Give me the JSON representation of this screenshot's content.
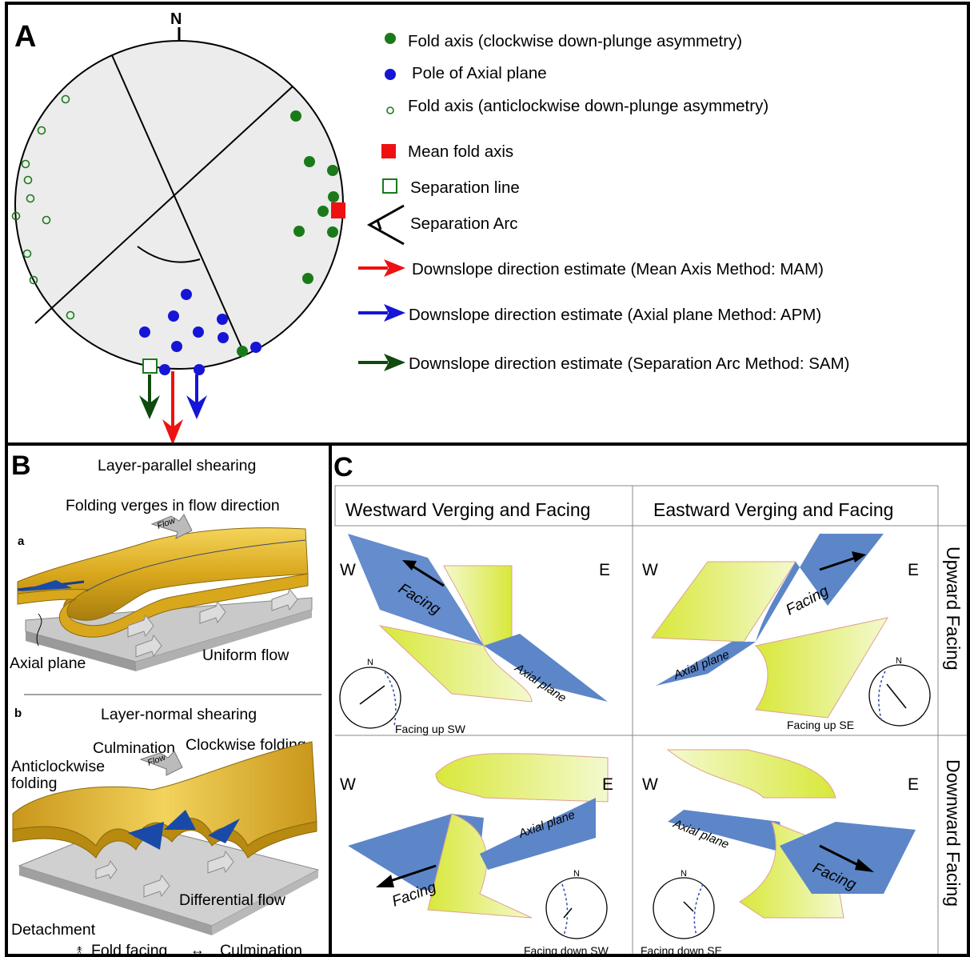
{
  "panelA": {
    "letter": "A",
    "north_label": "N",
    "legend": [
      {
        "label": "Fold axis (clockwise down-plunge asymmetry)"
      },
      {
        "label": "Pole of Axial plane"
      },
      {
        "label": "Fold axis (anticlockwise down-plunge asymmetry)"
      },
      {
        "label": "Mean fold axis"
      },
      {
        "label": "Separation line"
      },
      {
        "label": "Separation Arc"
      },
      {
        "label": "Downslope direction estimate (Mean Axis Method: MAM)"
      },
      {
        "label": "Downslope direction estimate (Axial plane Method: APM)"
      },
      {
        "label": "Downslope direction estimate (Separation Arc Method: SAM)"
      }
    ],
    "colors": {
      "clockwise": "#1a7a1a",
      "pole": "#1515d8",
      "anticlockwise": "#1a7a1a",
      "mean": "#ee1111",
      "separation": "#1a7a1a",
      "mam": "#ee1111",
      "apm": "#1515d8",
      "sam": "#0f4a0f"
    }
  },
  "panelB": {
    "letter": "B",
    "title_a": "Layer-parallel shearing",
    "subtitle_a": "Folding verges in flow direction",
    "label_a": "a",
    "flow_a": "Flow",
    "axial_plane": "Axial plane",
    "uniform_flow": "Uniform flow",
    "title_b": "Layer-normal shearing",
    "label_b": "b",
    "culmination": "Culmination",
    "clockwise_folding": "Clockwise folding",
    "anticlockwise_folding_1": "Anticlockwise",
    "anticlockwise_folding_2": "folding",
    "flow_b": "Flow",
    "differential_flow": "Differential flow",
    "detachment": "Detachment",
    "legend_fold_facing": "Fold facing",
    "legend_culmination": "Culmination"
  },
  "panelC": {
    "letter": "C",
    "col_west": "Westward Verging and Facing",
    "col_east": "Eastward Verging and Facing",
    "row_up": "Upward Facing",
    "row_down": "Downward Facing",
    "w": "W",
    "e": "E",
    "n": "N",
    "facing": "Facing",
    "axial_plane": "Axial plane",
    "caption_up_sw": "Facing up SW",
    "caption_up_se": "Facing up SE",
    "caption_down_sw": "Facing down SW",
    "caption_down_se": "Facing down SE"
  }
}
